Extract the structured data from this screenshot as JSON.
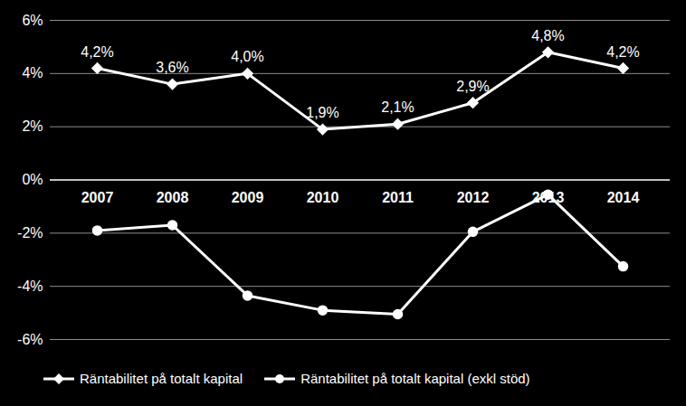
{
  "chart_data": {
    "type": "line",
    "categories": [
      "2007",
      "2008",
      "2009",
      "2010",
      "2011",
      "2012",
      "2013",
      "2014"
    ],
    "series": [
      {
        "name": "Räntabilitet på totalt kapital",
        "color": "#ffffff",
        "marker": "diamond",
        "values": [
          4.2,
          3.6,
          4.0,
          1.9,
          2.1,
          2.9,
          4.8,
          4.2
        ],
        "data_labels": true,
        "value_labels": [
          "4,2%",
          "3,6%",
          "4,0%",
          "1,9%",
          "2,1%",
          "2,9%",
          "4,8%",
          "4,2%"
        ]
      },
      {
        "name": "Räntabilitet på totalt kapital (exkl stöd)",
        "color": "#ffffff",
        "marker": "circle",
        "values": [
          -1.9,
          -1.7,
          -4.35,
          -4.9,
          -5.05,
          -1.95,
          -0.55,
          -3.25
        ]
      }
    ],
    "ylim": [
      -6,
      6
    ],
    "yticks": [
      {
        "value": -6,
        "label": "-6%"
      },
      {
        "value": -4,
        "label": "-4%"
      },
      {
        "value": -2,
        "label": "-2%"
      },
      {
        "value": 0,
        "label": "0%"
      },
      {
        "value": 2,
        "label": "2%"
      },
      {
        "value": 4,
        "label": "4%"
      },
      {
        "value": 6,
        "label": "6%"
      }
    ],
    "grid": true,
    "legend": "bottom"
  }
}
